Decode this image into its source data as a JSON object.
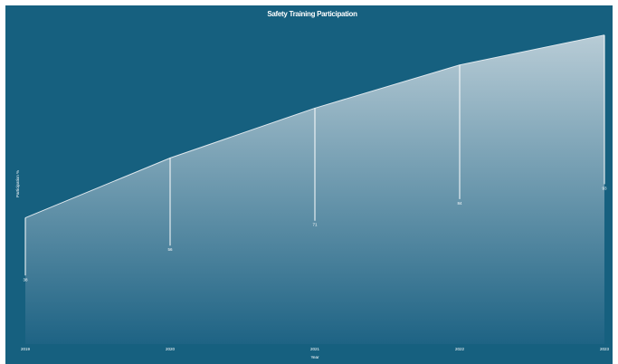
{
  "chart_data": {
    "type": "area",
    "title": "Safety Training Participation",
    "xlabel": "Year",
    "ylabel": "Participation %",
    "categories": [
      "2019",
      "2020",
      "2021",
      "2022",
      "2023"
    ],
    "series": [
      {
        "values": [
          38,
          56,
          71,
          84,
          93
        ]
      }
    ],
    "ylim": [
      0,
      100
    ],
    "grid": false,
    "legend": "none",
    "colors": {
      "background": "#16607f",
      "area_top": "#b8ccd6",
      "area_bottom": "#1e6384",
      "line": "#dfe8ee",
      "drop_line": "#ffffff",
      "text": "#ffffff"
    }
  }
}
